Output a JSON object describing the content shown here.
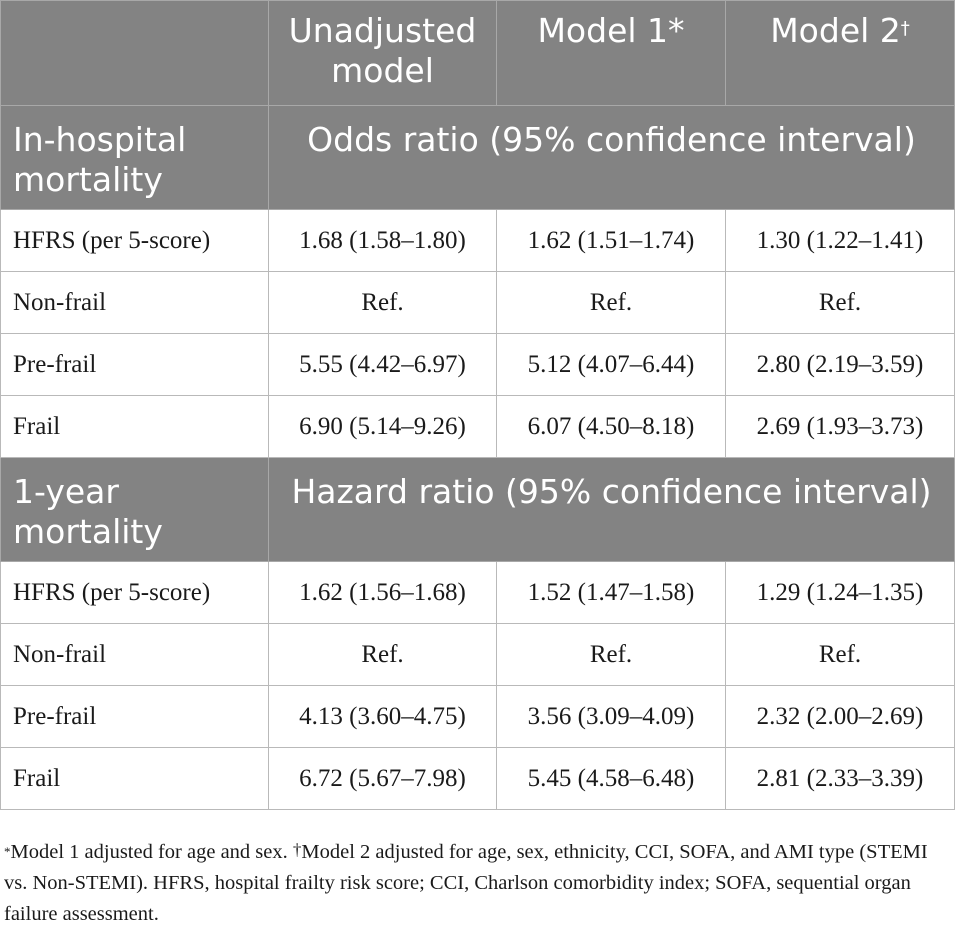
{
  "table": {
    "header": {
      "col0": "",
      "col1": "Unadjusted model",
      "col2_text": "Model 1",
      "col2_mark": "*",
      "col3_text": "Model 2",
      "col3_mark": "†"
    },
    "sections": [
      {
        "label": "In-hospital mortality",
        "measure": "Odds ratio (95% confidence interval)",
        "rows": [
          {
            "label": "HFRS (per 5-score)",
            "values": [
              "1.68 (1.58–1.80)",
              "1.62 (1.51–1.74)",
              "1.30 (1.22–1.41)"
            ]
          },
          {
            "label": "Non-frail",
            "values": [
              "Ref.",
              "Ref.",
              "Ref."
            ]
          },
          {
            "label": "Pre-frail",
            "values": [
              "5.55 (4.42–6.97)",
              "5.12 (4.07–6.44)",
              "2.80 (2.19–3.59)"
            ]
          },
          {
            "label": "Frail",
            "values": [
              "6.90 (5.14–9.26)",
              "6.07 (4.50–8.18)",
              "2.69 (1.93–3.73)"
            ]
          }
        ]
      },
      {
        "label": "1-year mortality",
        "measure": "Hazard ratio (95% confidence interval)",
        "rows": [
          {
            "label": "HFRS (per 5-score)",
            "values": [
              "1.62 (1.56–1.68)",
              "1.52 (1.47–1.58)",
              "1.29 (1.24–1.35)"
            ]
          },
          {
            "label": "Non-frail",
            "values": [
              "Ref.",
              "Ref.",
              "Ref."
            ]
          },
          {
            "label": "Pre-frail",
            "values": [
              "4.13 (3.60–4.75)",
              "3.56 (3.09–4.09)",
              "2.32 (2.00–2.69)"
            ]
          },
          {
            "label": "Frail",
            "values": [
              "6.72 (5.67–7.98)",
              "5.45 (4.58–6.48)",
              "2.81 (2.33–3.39)"
            ]
          }
        ]
      }
    ]
  },
  "footnotes": {
    "mark1": "*",
    "text1": "Model 1 adjusted for age and sex. ",
    "mark2": "†",
    "text2": "Model 2 adjusted for age, sex, ethnicity, CCI, SOFA, and AMI type (STEMI vs. Non-STEMI). HFRS, hospital frailty risk score; CCI, Charlson comorbidity index; SOFA, sequential organ failure assessment."
  }
}
